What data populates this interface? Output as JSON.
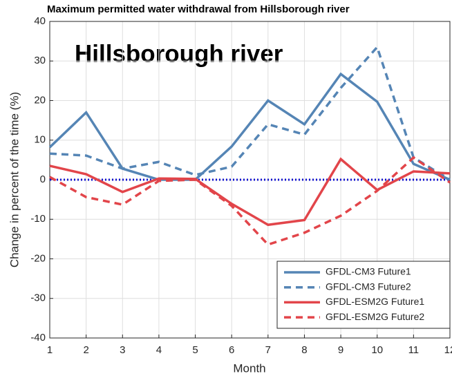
{
  "chart_data": {
    "type": "line",
    "title": "Maximum permitted water withdrawal from Hillsborough river",
    "annotation": "Hillsborough river",
    "xlabel": "Month",
    "ylabel": "Change in percent of the time (%)",
    "x": [
      1,
      2,
      3,
      4,
      5,
      6,
      7,
      8,
      9,
      10,
      11,
      12
    ],
    "xlim": [
      1,
      12
    ],
    "xticks": [
      1,
      2,
      3,
      4,
      5,
      6,
      7,
      8,
      9,
      10,
      11,
      12
    ],
    "ylim": [
      -40,
      40
    ],
    "yticks": [
      -40,
      -30,
      -20,
      -10,
      0,
      10,
      20,
      30,
      40
    ],
    "grid": true,
    "legend": "lower right",
    "reference_line": {
      "value": 0,
      "color": "#1010d0"
    },
    "series": [
      {
        "name": "GFDL-CM3 Future1",
        "color": "#5585b5",
        "linestyle": "solid",
        "values": [
          8.2,
          17,
          2.8,
          0,
          0,
          8.4,
          20,
          14,
          26.7,
          19.7,
          4,
          0
        ]
      },
      {
        "name": "GFDL-CM3 Future2",
        "color": "#5585b5",
        "linestyle": "dashed",
        "values": [
          6.6,
          6.1,
          2.8,
          4.5,
          1.2,
          3.3,
          14,
          11.4,
          23.2,
          33.5,
          5.6,
          0
        ]
      },
      {
        "name": "GFDL-ESM2G Future1",
        "color": "#e2454a",
        "linestyle": "solid",
        "values": [
          3.5,
          1.4,
          -3.1,
          0.3,
          0.2,
          -6.1,
          -11.4,
          -10.2,
          5.2,
          -2.6,
          2.1,
          1.6
        ]
      },
      {
        "name": "GFDL-ESM2G Future2",
        "color": "#e2454a",
        "linestyle": "dashed",
        "values": [
          0.7,
          -4.4,
          -6.3,
          -0.3,
          0,
          -6.6,
          -16.4,
          -13.4,
          -9.1,
          -2.8,
          5.6,
          -0.7
        ]
      }
    ]
  }
}
